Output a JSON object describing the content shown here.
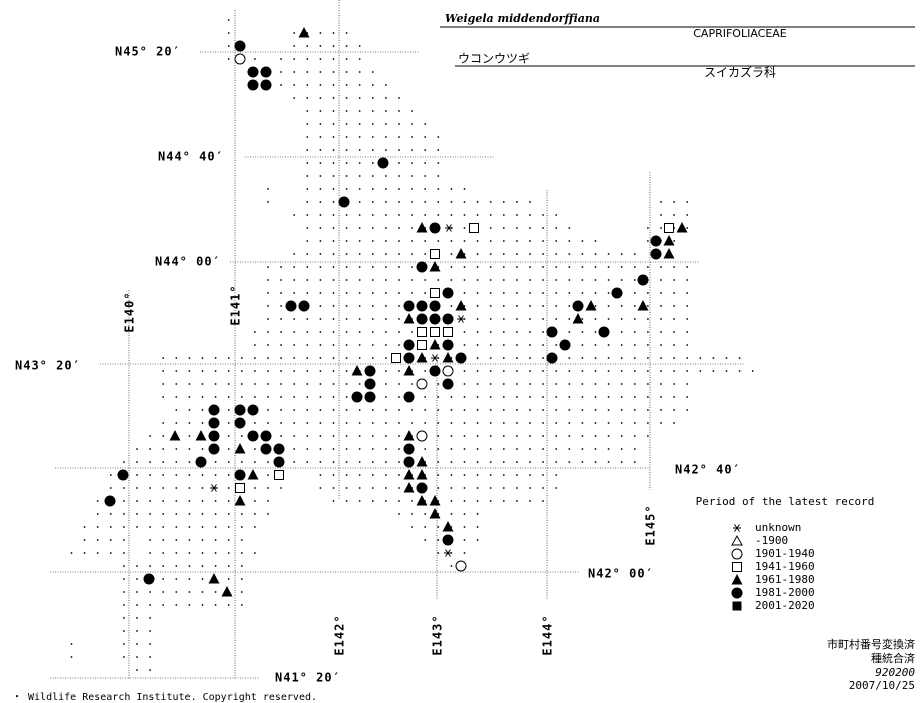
{
  "header": {
    "title": "Weigela middendorffiana",
    "family": "CAPRIFOLIACEAE",
    "japanese_name": "ウコンウツギ",
    "japanese_family": "スイカズラ科"
  },
  "latitude_labels": [
    "N45° 20′",
    "N44° 40′",
    "N44° 00′",
    "N43° 20′",
    "N42° 40′",
    "N42° 00′",
    "N41° 20′"
  ],
  "longitude_labels": [
    "E140°",
    "E141°",
    "E142°",
    "E143°",
    "E144°",
    "E145°"
  ],
  "legend": {
    "title": "Period of the latest record",
    "entries": [
      "unknown",
      "-1900",
      "1901-1940",
      "1941-1960",
      "1961-1980",
      "1981-2000",
      "2001-2020"
    ]
  },
  "notes": [
    "市町村番号変換済",
    "種統合済",
    "920200",
    "2007/10/25"
  ],
  "footer": "・ Wildlife Research Institute. Copyright reserved."
}
